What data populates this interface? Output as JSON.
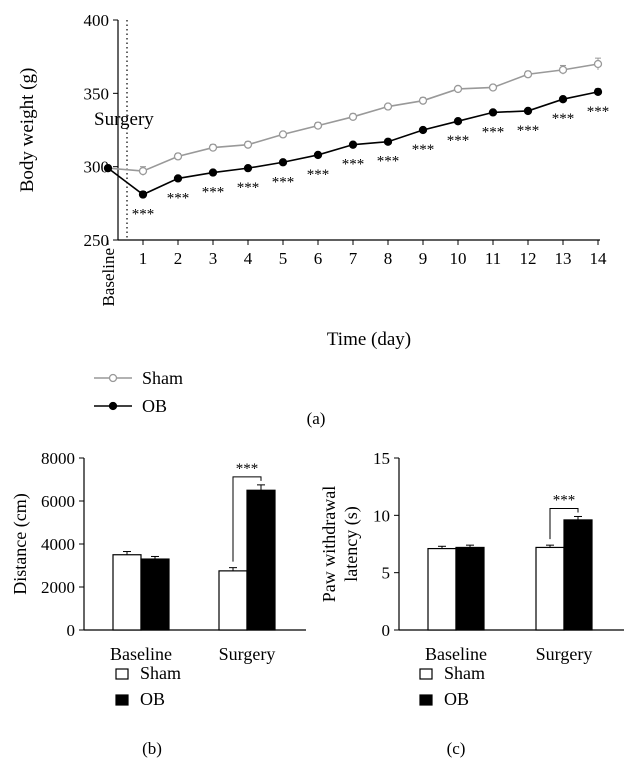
{
  "chart_data": [
    {
      "type": "line",
      "panel_label": "(a)",
      "xlabel": "Time (day)",
      "ylabel": "Body weight (g)",
      "categories": [
        "Baseline",
        "1",
        "2",
        "3",
        "4",
        "5",
        "6",
        "7",
        "8",
        "9",
        "10",
        "11",
        "12",
        "13",
        "14"
      ],
      "ylim": [
        250,
        400
      ],
      "yticks": [
        250,
        300,
        350,
        400
      ],
      "annotation": "Surgery",
      "significance": "***",
      "significant_days": [
        "1",
        "2",
        "3",
        "4",
        "5",
        "6",
        "7",
        "8",
        "9",
        "10",
        "11",
        "12",
        "13",
        "14"
      ],
      "legend_position": "bottom-left",
      "series": [
        {
          "name": "Sham",
          "color": "#999999",
          "marker": "open-circle",
          "values": [
            299,
            297,
            307,
            313,
            315,
            322,
            328,
            334,
            341,
            345,
            353,
            354,
            363,
            366,
            370
          ],
          "errors": [
            1,
            3,
            2,
            2,
            2,
            1,
            2,
            2,
            1,
            2,
            1,
            1,
            2,
            3,
            4
          ]
        },
        {
          "name": "OB",
          "color": "#000000",
          "marker": "filled-circle",
          "values": [
            299,
            281,
            292,
            296,
            299,
            303,
            308,
            315,
            317,
            325,
            331,
            337,
            338,
            346,
            351
          ],
          "errors": [
            1,
            2,
            1,
            1,
            1,
            1,
            1,
            1,
            1,
            1,
            1,
            1,
            1,
            1,
            2
          ]
        }
      ]
    },
    {
      "type": "bar",
      "panel_label": "(b)",
      "ylabel": "Distance (cm)",
      "categories": [
        "Baseline",
        "Surgery"
      ],
      "ylim": [
        0,
        8000
      ],
      "yticks": [
        0,
        2000,
        4000,
        6000,
        8000
      ],
      "significance": "***",
      "legend_position": "bottom-left",
      "series": [
        {
          "name": "Sham",
          "fill": "#ffffff",
          "values": [
            3500,
            2750
          ],
          "errors": [
            150,
            150
          ]
        },
        {
          "name": "OB",
          "fill": "#000000",
          "values": [
            3300,
            6500
          ],
          "errors": [
            120,
            250
          ]
        }
      ]
    },
    {
      "type": "bar",
      "panel_label": "(c)",
      "ylabel": "Paw withdrawal latency (s)",
      "ylabel_lines": [
        "Paw withdrawal",
        "latency (s)"
      ],
      "categories": [
        "Baseline",
        "Surgery"
      ],
      "ylim": [
        0,
        15
      ],
      "yticks": [
        0,
        5,
        10,
        15
      ],
      "significance": "***",
      "legend_position": "bottom-left",
      "series": [
        {
          "name": "Sham",
          "fill": "#ffffff",
          "values": [
            7.1,
            7.2
          ],
          "errors": [
            0.2,
            0.2
          ]
        },
        {
          "name": "OB",
          "fill": "#000000",
          "values": [
            7.2,
            9.6
          ],
          "errors": [
            0.2,
            0.3
          ]
        }
      ]
    }
  ]
}
